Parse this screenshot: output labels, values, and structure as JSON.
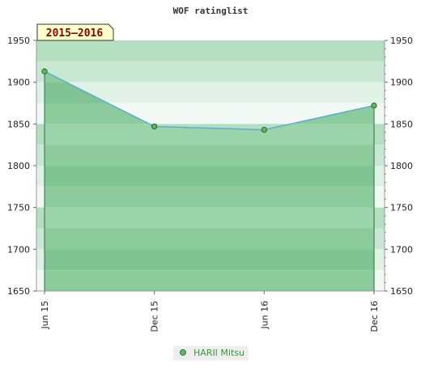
{
  "chart_data": {
    "type": "area",
    "title": "WOF ratinglist",
    "period_label": "2015–2016",
    "categories": [
      "Jun 15",
      "Dec 15",
      "Jun 16",
      "Dec 16"
    ],
    "series": [
      {
        "name": "HARII Mitsu",
        "values": [
          1913,
          1847,
          1843,
          1872
        ]
      }
    ],
    "ylim": [
      1650,
      1950
    ],
    "yticks": [
      1650,
      1700,
      1750,
      1800,
      1850,
      1900,
      1950
    ],
    "ytick_labels": [
      "1650",
      "1700",
      "1750",
      "1800",
      "1850",
      "1900",
      "1950"
    ],
    "xlabel": "",
    "ylabel": "",
    "grid": true,
    "legend": "bottom",
    "colors": {
      "line": "#5aa9d6",
      "marker": "#5cb85c",
      "fill": "#7cc48c",
      "badge_bg": "#ffffcc",
      "badge_text": "#8b0000",
      "legend_text": "#3a9a3a"
    }
  }
}
